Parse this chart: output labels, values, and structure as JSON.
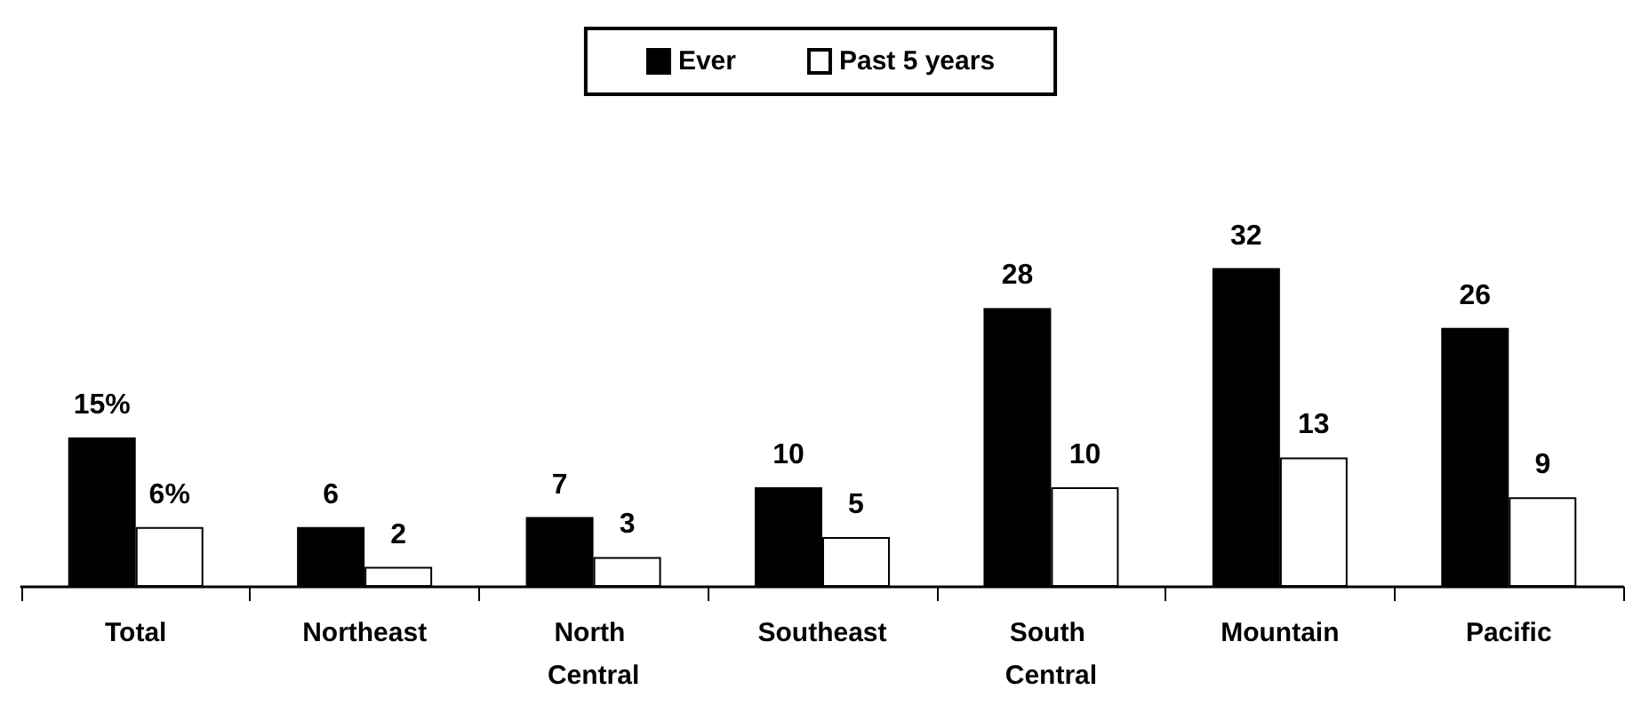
{
  "chart_data": {
    "type": "bar",
    "categories": [
      "Total",
      "Northeast",
      "North Central",
      "Southeast",
      "South Central",
      "Mountain",
      "Pacific"
    ],
    "series": [
      {
        "name": "Ever",
        "color": "#000000",
        "values": [
          15,
          6,
          7,
          10,
          28,
          32,
          26
        ],
        "value_labels": [
          "15%",
          "6",
          "7",
          "10",
          "28",
          "32",
          "26"
        ]
      },
      {
        "name": "Past 5 years",
        "color": "#ffffff",
        "values": [
          6,
          2,
          3,
          5,
          10,
          13,
          9
        ],
        "value_labels": [
          "6%",
          "2",
          "3",
          "5",
          "10",
          "13",
          "9"
        ]
      }
    ],
    "legend": "top",
    "grid": false
  }
}
